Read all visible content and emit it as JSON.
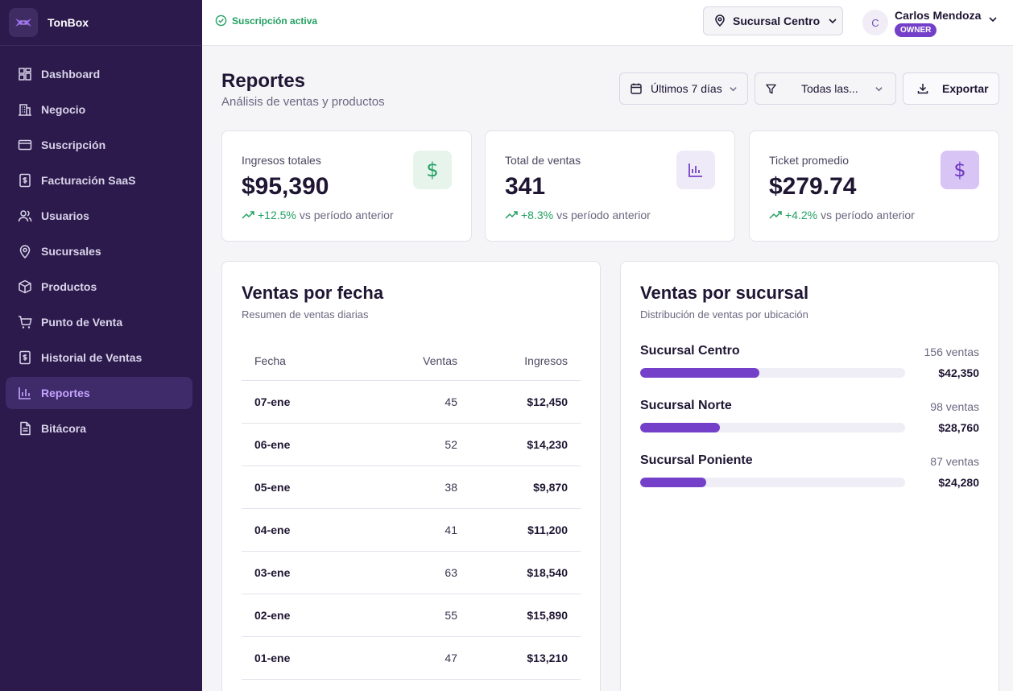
{
  "app": {
    "name": "TonBox"
  },
  "sidebar": {
    "items": [
      {
        "label": "Dashboard",
        "icon": "dashboard-icon",
        "active": false
      },
      {
        "label": "Negocio",
        "icon": "building-icon",
        "active": false
      },
      {
        "label": "Suscripción",
        "icon": "card-icon",
        "active": false
      },
      {
        "label": "Facturación SaaS",
        "icon": "invoice-icon",
        "active": false
      },
      {
        "label": "Usuarios",
        "icon": "users-icon",
        "active": false
      },
      {
        "label": "Sucursales",
        "icon": "location-icon",
        "active": false
      },
      {
        "label": "Productos",
        "icon": "box-icon",
        "active": false
      },
      {
        "label": "Punto de Venta",
        "icon": "cart-icon",
        "active": false
      },
      {
        "label": "Historial de Ventas",
        "icon": "receipt-icon",
        "active": false
      },
      {
        "label": "Reportes",
        "icon": "bar-chart-icon",
        "active": true
      },
      {
        "label": "Bitácora",
        "icon": "document-icon",
        "active": false
      }
    ]
  },
  "topbar": {
    "subscription_status": "Suscripción activa",
    "branch": "Sucursal Centro",
    "user": {
      "initial": "C",
      "name": "Carlos Mendoza",
      "role": "OWNER"
    }
  },
  "header": {
    "title": "Reportes",
    "subtitle": "Análisis de ventas y productos",
    "date_range": "Últimos 7 días",
    "filter": "Todas las...",
    "export_label": "Exportar"
  },
  "stats": [
    {
      "label": "Ingresos totales",
      "value": "$95,390",
      "change": "+12.5%",
      "suffix": "vs período anterior",
      "icon": "dollar-icon"
    },
    {
      "label": "Total de ventas",
      "value": "341",
      "change": "+8.3%",
      "suffix": "vs período anterior",
      "icon": "bar-chart-icon"
    },
    {
      "label": "Ticket promedio",
      "value": "$279.74",
      "change": "+4.2%",
      "suffix": "vs período anterior",
      "icon": "dollar-icon"
    }
  ],
  "sales_by_date": {
    "title": "Ventas por fecha",
    "subtitle": "Resumen de ventas diarias",
    "headers": [
      "Fecha",
      "Ventas",
      "Ingresos"
    ],
    "rows": [
      [
        "07-ene",
        "45",
        "$12,450"
      ],
      [
        "06-ene",
        "52",
        "$14,230"
      ],
      [
        "05-ene",
        "38",
        "$9,870"
      ],
      [
        "04-ene",
        "41",
        "$11,200"
      ],
      [
        "03-ene",
        "63",
        "$18,540"
      ],
      [
        "02-ene",
        "55",
        "$15,890"
      ],
      [
        "01-ene",
        "47",
        "$13,210"
      ]
    ]
  },
  "sales_by_branch": {
    "title": "Ventas por sucursal",
    "subtitle": "Distribución de ventas por ubicación",
    "branches": [
      {
        "name": "Sucursal Centro",
        "count": "156 ventas",
        "amount": "$42,350",
        "share": 0.45
      },
      {
        "name": "Sucursal Norte",
        "count": "98 ventas",
        "amount": "$28,760",
        "share": 0.3
      },
      {
        "name": "Sucursal Poniente",
        "count": "87 ventas",
        "amount": "$24,280",
        "share": 0.25
      }
    ]
  },
  "colors": {
    "accent": "#7540c9",
    "sidebar": "#2b1a4b",
    "success": "#22a062"
  }
}
